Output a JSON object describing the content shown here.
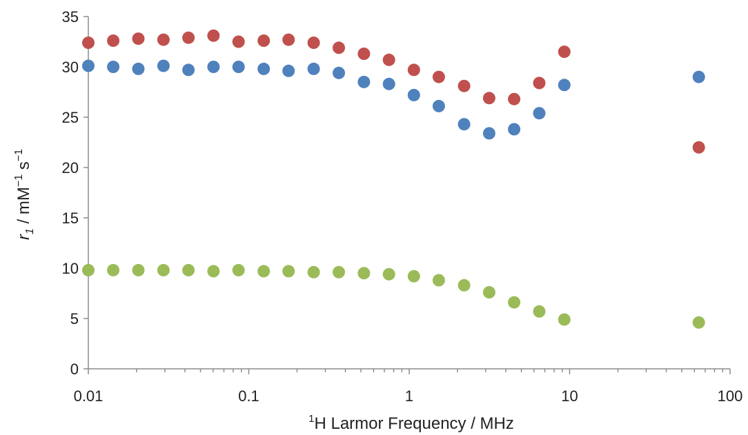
{
  "chart_data": {
    "type": "scatter",
    "title": "",
    "xlabel": {
      "sup": "1",
      "text": "H Larmor Frequency / MHz"
    },
    "ylabel": {
      "italic": "r",
      "sub": "1",
      "text": " / mM",
      "sup1": "−1",
      "mid": " s",
      "sup2": "−1"
    },
    "x_scale": "log",
    "xlim": [
      0.01,
      100
    ],
    "ylim": [
      0,
      35
    ],
    "x_ticks": [
      0.01,
      0.1,
      1,
      10,
      100
    ],
    "x_tick_labels": [
      "0.01",
      "0.1",
      "1",
      "10",
      "100"
    ],
    "y_ticks": [
      0,
      5,
      10,
      15,
      20,
      25,
      30,
      35
    ],
    "y_tick_labels": [
      "0",
      "5",
      "10",
      "15",
      "20",
      "25",
      "30",
      "35"
    ],
    "grid": false,
    "legend": "none",
    "x": [
      0.01,
      0.0143,
      0.0205,
      0.0294,
      0.0421,
      0.0603,
      0.0864,
      0.124,
      0.177,
      0.254,
      0.364,
      0.522,
      0.748,
      1.07,
      1.53,
      2.2,
      3.15,
      4.51,
      6.47,
      9.27,
      63.86
    ],
    "series": [
      {
        "color": "#c0504d",
        "values": [
          32.4,
          32.6,
          32.8,
          32.7,
          32.9,
          33.1,
          32.5,
          32.6,
          32.7,
          32.4,
          31.9,
          31.3,
          30.7,
          29.7,
          29.0,
          28.1,
          26.9,
          26.8,
          28.4,
          31.5,
          22.0
        ]
      },
      {
        "color": "#4f81bd",
        "values": [
          30.1,
          30.0,
          29.8,
          30.1,
          29.7,
          30.0,
          30.0,
          29.8,
          29.6,
          29.8,
          29.4,
          28.5,
          28.3,
          27.2,
          26.1,
          24.3,
          23.4,
          23.8,
          25.4,
          28.2,
          29.0
        ]
      },
      {
        "color": "#9bbb59",
        "values": [
          9.8,
          9.8,
          9.8,
          9.8,
          9.8,
          9.7,
          9.8,
          9.7,
          9.7,
          9.6,
          9.6,
          9.5,
          9.4,
          9.2,
          8.8,
          8.3,
          7.6,
          6.6,
          5.7,
          4.9,
          4.6
        ]
      }
    ]
  }
}
